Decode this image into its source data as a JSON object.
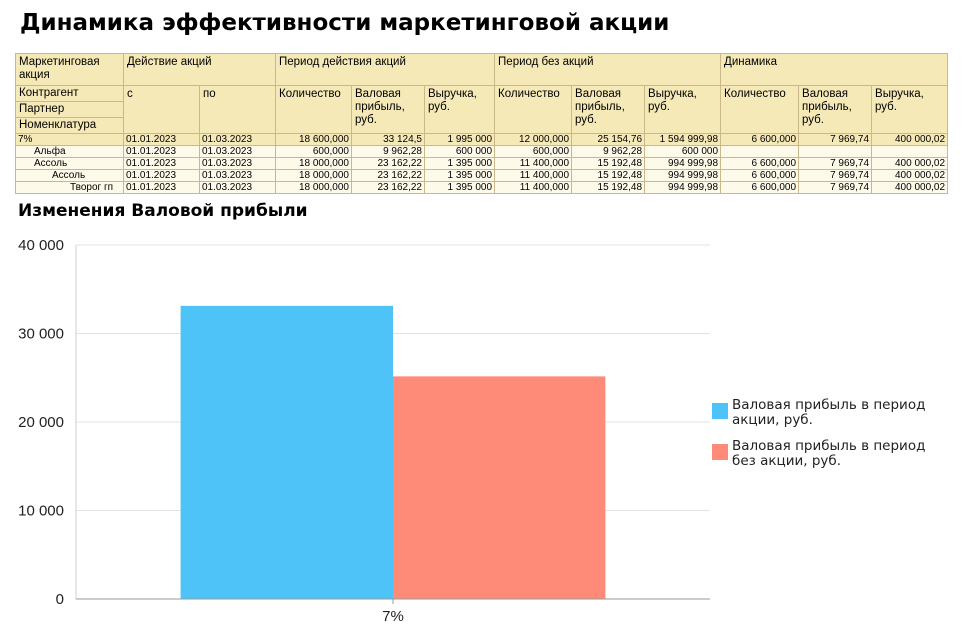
{
  "report": {
    "title": "Динамика эффективности маркетинговой акции",
    "headers": {
      "group_col": [
        "Маркетинговая акция",
        "Контрагент",
        "Партнер",
        "Номенклатура"
      ],
      "action": "Действие акций",
      "from": "с",
      "to": "по",
      "period_with": "Период действия акций",
      "period_without": "Период без акций",
      "dynamics": "Динамика",
      "qty": "Количество",
      "gross_profit": "Валовая прибыль, руб.",
      "revenue": "Выручка, руб."
    },
    "rows": [
      {
        "name": "7%",
        "from": "01.01.2023",
        "to": "01.03.2023",
        "w_qty": "18 600,000",
        "w_gp": "33 124,5",
        "w_rev": "1 995 000",
        "wo_qty": "12 000,000",
        "wo_gp": "25 154,76",
        "wo_rev": "1 594 999,98",
        "d_qty": "6 600,000",
        "d_gp": "7 969,74",
        "d_rev": "400 000,02"
      },
      {
        "name": "Альфа",
        "from": "01.01.2023",
        "to": "01.03.2023",
        "w_qty": "600,000",
        "w_gp": "9 962,28",
        "w_rev": "600 000",
        "wo_qty": "600,000",
        "wo_gp": "9 962,28",
        "wo_rev": "600 000",
        "d_qty": "",
        "d_gp": "",
        "d_rev": ""
      },
      {
        "name": "Ассоль",
        "from": "01.01.2023",
        "to": "01.03.2023",
        "w_qty": "18 000,000",
        "w_gp": "23 162,22",
        "w_rev": "1 395 000",
        "wo_qty": "11 400,000",
        "wo_gp": "15 192,48",
        "wo_rev": "994 999,98",
        "d_qty": "6 600,000",
        "d_gp": "7 969,74",
        "d_rev": "400 000,02"
      },
      {
        "name": "Ассоль",
        "from": "01.01.2023",
        "to": "01.03.2023",
        "w_qty": "18 000,000",
        "w_gp": "23 162,22",
        "w_rev": "1 395 000",
        "wo_qty": "11 400,000",
        "wo_gp": "15 192,48",
        "wo_rev": "994 999,98",
        "d_qty": "6 600,000",
        "d_gp": "7 969,74",
        "d_rev": "400 000,02"
      },
      {
        "name": "Творог гп",
        "from": "01.01.2023",
        "to": "01.03.2023",
        "w_qty": "18 000,000",
        "w_gp": "23 162,22",
        "w_rev": "1 395 000",
        "wo_qty": "11 400,000",
        "wo_gp": "15 192,48",
        "wo_rev": "994 999,98",
        "d_qty": "6 600,000",
        "d_gp": "7 969,74",
        "d_rev": "400 000,02"
      }
    ]
  },
  "chart_data": {
    "type": "bar",
    "title": "Изменения Валовой прибыли",
    "categories": [
      "7%"
    ],
    "series": [
      {
        "name": "Валовая прибыль в период акции, руб.",
        "values": [
          33124.5
        ],
        "color": "#4dc3f7"
      },
      {
        "name": "Валовая прибыль в период без акции, руб.",
        "values": [
          25154.76
        ],
        "color": "#fe8a78"
      }
    ],
    "ylim": [
      0,
      40000
    ],
    "yticks": [
      0,
      10000,
      20000,
      30000,
      40000
    ],
    "ytick_labels": [
      "0",
      "10 000",
      "20 000",
      "30 000",
      "40 000"
    ],
    "grid": true,
    "legend": "right"
  }
}
